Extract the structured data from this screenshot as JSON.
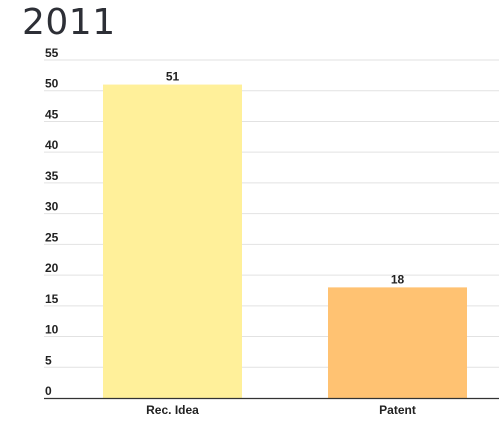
{
  "chart_data": {
    "type": "bar",
    "title": "2011",
    "xlabel": "",
    "ylabel": "",
    "categories": [
      "Rec. Idea",
      "Patent"
    ],
    "values": [
      51,
      18
    ],
    "data_labels": [
      "51",
      "18"
    ],
    "bar_colors": [
      "#fff09a",
      "#ffc272"
    ],
    "ylim": [
      0,
      55
    ],
    "y_ticks": [
      0,
      5,
      10,
      15,
      20,
      25,
      30,
      35,
      40,
      45,
      50,
      55
    ],
    "grid": true,
    "legend": "none"
  },
  "colors": {
    "grid": "#e2e2e2",
    "axis": "#333333"
  }
}
